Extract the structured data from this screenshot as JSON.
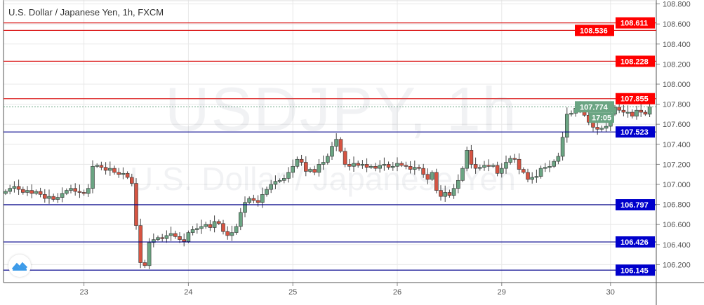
{
  "header": {
    "title": "U.S. Dollar / Japanese Yen, 1h, FXCM"
  },
  "watermark": {
    "symbol": "USDJPY, 1h",
    "name": "U.S. Dollar / Japanese Yen"
  },
  "chart_data": {
    "type": "candlestick",
    "symbol": "USDJPY",
    "interval": "1h",
    "ylim": [
      106.15,
      108.8
    ],
    "yticks": [
      "108.800",
      "108.600",
      "108.400",
      "108.200",
      "108.000",
      "107.800",
      "107.600",
      "107.400",
      "107.200",
      "107.000",
      "106.800",
      "106.600",
      "106.400",
      "106.200"
    ],
    "date_ticks": [
      {
        "label": "23",
        "bar": 18
      },
      {
        "label": "24",
        "bar": 42
      },
      {
        "label": "25",
        "bar": 66
      },
      {
        "label": "26",
        "bar": 90
      },
      {
        "label": "29",
        "bar": 114
      },
      {
        "label": "30",
        "bar": 139
      }
    ],
    "closes": [
      106.93,
      106.96,
      106.98,
      106.95,
      106.92,
      106.94,
      106.91,
      106.93,
      106.9,
      106.86,
      106.88,
      106.85,
      106.87,
      106.91,
      106.94,
      106.96,
      106.93,
      106.92,
      106.91,
      106.96,
      107.18,
      107.19,
      107.17,
      107.14,
      107.16,
      107.12,
      107.1,
      107.11,
      107.07,
      107.01,
      106.59,
      106.22,
      106.19,
      106.42,
      106.45,
      106.47,
      106.46,
      106.49,
      106.51,
      106.48,
      106.45,
      106.43,
      106.52,
      106.55,
      106.56,
      106.58,
      106.6,
      106.57,
      106.63,
      106.61,
      106.53,
      106.49,
      106.52,
      106.58,
      106.72,
      106.82,
      106.86,
      106.84,
      106.82,
      106.9,
      106.95,
      107.0,
      107.03,
      107.04,
      107.06,
      107.12,
      107.18,
      107.25,
      107.22,
      107.13,
      107.15,
      107.12,
      107.2,
      107.22,
      107.28,
      107.38,
      107.45,
      107.33,
      107.2,
      107.18,
      107.21,
      107.19,
      107.2,
      107.17,
      107.18,
      107.16,
      107.19,
      107.2,
      107.17,
      107.18,
      107.21,
      107.19,
      107.18,
      107.15,
      107.17,
      107.16,
      107.1,
      107.05,
      107.12,
      106.94,
      106.88,
      106.92,
      106.89,
      106.96,
      107.04,
      107.16,
      107.34,
      107.2,
      107.16,
      107.17,
      107.19,
      107.18,
      107.19,
      107.11,
      107.16,
      107.22,
      107.26,
      107.25,
      107.15,
      107.12,
      107.05,
      107.07,
      107.08,
      107.16,
      107.17,
      107.18,
      107.23,
      107.28,
      107.47,
      107.7,
      107.71,
      107.76,
      107.77,
      107.69,
      107.62,
      107.57,
      107.55,
      107.56,
      107.58,
      107.7,
      107.77,
      107.74,
      107.72,
      107.72,
      107.68,
      107.74,
      107.72,
      107.7,
      107.774
    ],
    "first_open": 106.91,
    "current_price": {
      "value": "107.774",
      "countdown": "17:05"
    },
    "levels": [
      {
        "value": "108.611",
        "type": "resistance"
      },
      {
        "value": "108.536",
        "type": "resistance"
      },
      {
        "value": "108.228",
        "type": "resistance"
      },
      {
        "value": "107.855",
        "type": "resistance"
      },
      {
        "value": "107.523",
        "type": "support"
      },
      {
        "value": "106.797",
        "type": "support"
      },
      {
        "value": "106.426",
        "type": "support"
      },
      {
        "value": "106.145",
        "type": "support"
      }
    ],
    "grid": true
  },
  "colors": {
    "up": "#6ba583",
    "down": "#d75442",
    "resistance": "#ff0000",
    "support": "#0000cc",
    "current": "#6ba583"
  },
  "icons": {
    "logo": "tradingview-cloud-icon"
  }
}
